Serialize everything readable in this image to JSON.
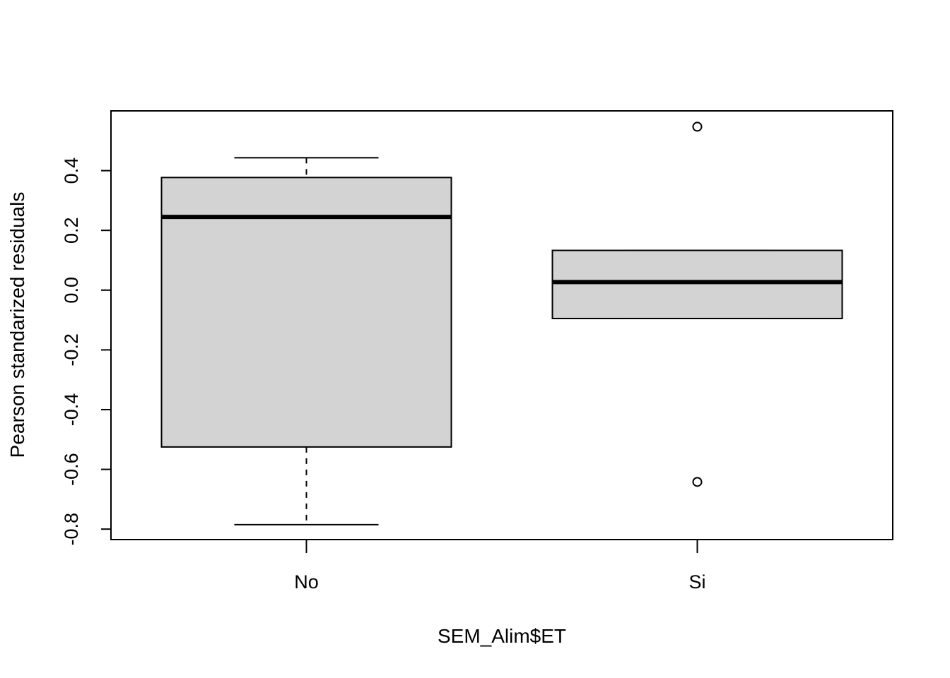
{
  "chart_data": {
    "type": "boxplot",
    "title": "",
    "xlabel": "SEM_Alim$ET",
    "ylabel": "Pearson standarized residuals",
    "categories": [
      "No",
      "Si"
    ],
    "ylim": [
      -0.835,
      0.6
    ],
    "yticks": [
      -0.8,
      -0.6,
      -0.4,
      -0.2,
      0.0,
      0.2,
      0.4
    ],
    "ytick_labels": [
      "-0.8",
      "-0.6",
      "-0.4",
      "-0.2",
      "0.0",
      "0.2",
      "0.4"
    ],
    "grid": false,
    "legend": "none",
    "box_fill": "#d3d3d3",
    "boxes": [
      {
        "category": "No",
        "whisker_low": -0.785,
        "q1": -0.525,
        "median": 0.245,
        "q3": 0.377,
        "whisker_high": 0.443,
        "outliers": []
      },
      {
        "category": "Si",
        "whisker_low": -0.095,
        "q1": -0.095,
        "median": 0.027,
        "q3": 0.133,
        "whisker_high": 0.133,
        "outliers": [
          0.547,
          -0.642
        ]
      }
    ]
  }
}
